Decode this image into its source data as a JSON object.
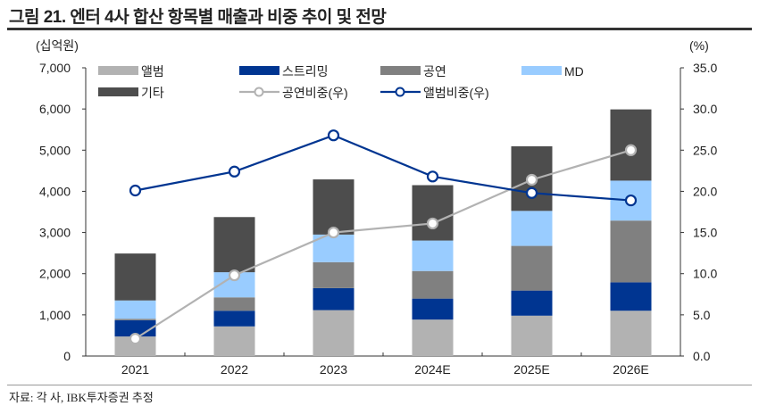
{
  "title": "그림 21. 엔터 4사 합산 항목별 매출과 비중 추이 및 전망",
  "source": "자료: 각 사, IBK투자증권 추정",
  "chart_data": {
    "type": "bar",
    "stacked": true,
    "title": "",
    "categories": [
      "2021",
      "2022",
      "2023",
      "2024E",
      "2025E",
      "2026E"
    ],
    "y_left": {
      "label": "(십억원)",
      "range": [
        0,
        7000
      ],
      "ticks": [
        "0",
        "1,000",
        "2,000",
        "3,000",
        "4,000",
        "5,000",
        "6,000",
        "7,000"
      ]
    },
    "y_right": {
      "label": "(%)",
      "range": [
        0,
        35
      ],
      "ticks": [
        "0.0",
        "5.0",
        "10.0",
        "15.0",
        "20.0",
        "25.0",
        "30.0",
        "35.0"
      ]
    },
    "grid": false,
    "legend_placement": "top",
    "series": [
      {
        "name": "앨범",
        "kind": "bar",
        "color": "#b2b2b2",
        "values": [
          475,
          720,
          1115,
          885,
          980,
          1100
        ]
      },
      {
        "name": "스트리밍",
        "kind": "bar",
        "color": "#003591",
        "values": [
          395,
          380,
          535,
          510,
          610,
          690
        ]
      },
      {
        "name": "공연",
        "kind": "bar",
        "color": "#808080",
        "values": [
          35,
          325,
          630,
          670,
          1085,
          1500
        ]
      },
      {
        "name": "MD",
        "kind": "bar",
        "color": "#99ccff",
        "values": [
          445,
          610,
          670,
          740,
          850,
          970
        ]
      },
      {
        "name": "기타",
        "kind": "bar",
        "color": "#4d4d4d",
        "values": [
          1140,
          1340,
          1340,
          1345,
          1570,
          1730
        ]
      },
      {
        "name": "공연비중(우)",
        "kind": "line",
        "axis": "right",
        "color": "#b2b2b2",
        "values": [
          2.1,
          9.8,
          15.0,
          16.1,
          21.4,
          25.0
        ]
      },
      {
        "name": "앨범비중(우)",
        "kind": "line",
        "axis": "right",
        "color": "#003591",
        "values": [
          20.1,
          22.4,
          26.8,
          21.8,
          19.8,
          18.9
        ]
      }
    ]
  }
}
